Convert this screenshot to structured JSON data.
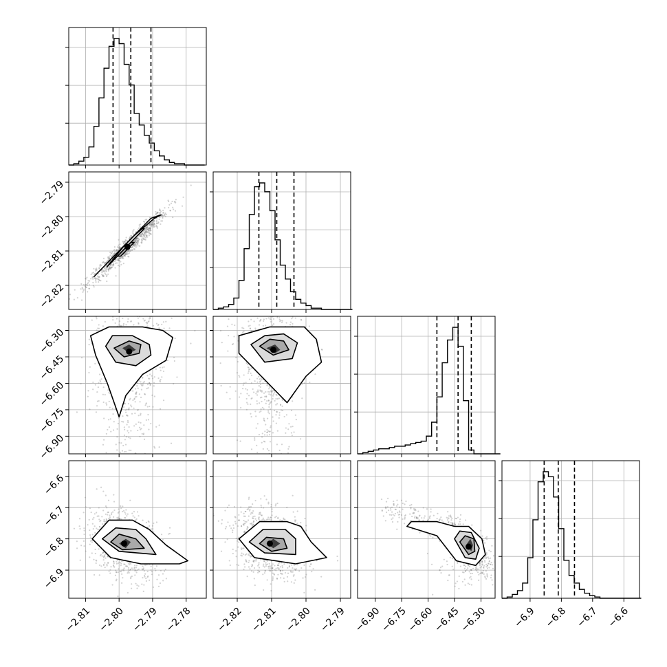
{
  "chart_data": {
    "type": "corner",
    "title": "",
    "grid": true,
    "colors": {
      "line": "#000000",
      "grid": "#b0b0b0",
      "points": "#7f7f7f"
    },
    "variables": [
      {
        "index": 0,
        "range": [
          -2.815,
          -2.774
        ],
        "ticks": [
          "-2.81",
          "-2.80",
          "-2.79",
          "-2.78"
        ],
        "quantiles": [
          -2.8018,
          -2.7965,
          -2.7905
        ],
        "hist": {
          "start": -2.815,
          "step": 0.0015,
          "counts": [
            0,
            1,
            3,
            6,
            14,
            30,
            52,
            75,
            92,
            98,
            94,
            78,
            62,
            40,
            31,
            23,
            17,
            11,
            7,
            4,
            2,
            1,
            1,
            0,
            0,
            0,
            0
          ]
        }
      },
      {
        "index": 1,
        "range": [
          -2.827,
          -2.787
        ],
        "ticks": [
          "-2.82",
          "-2.81",
          "-2.80",
          "-2.79"
        ],
        "quantiles": [
          -2.8137,
          -2.8085,
          -2.8035
        ],
        "hist": {
          "start": -2.827,
          "step": 0.0015,
          "counts": [
            0,
            1,
            2,
            4,
            9,
            23,
            48,
            75,
            97,
            100,
            93,
            78,
            55,
            35,
            24,
            14,
            8,
            5,
            3,
            1,
            1,
            0,
            0,
            0,
            0,
            0,
            0
          ]
        }
      },
      {
        "index": 2,
        "range": [
          -7.0,
          -6.22
        ],
        "ticks": [
          "-6.90",
          "-6.75",
          "-6.60",
          "-6.45",
          "-6.30"
        ],
        "quantiles": [
          -6.55,
          -6.43,
          -6.355
        ],
        "hist": {
          "start": -7.0,
          "step": 0.03,
          "counts": [
            0,
            1,
            2,
            3,
            4,
            4,
            5,
            6,
            6,
            7,
            8,
            9,
            10,
            14,
            25,
            45,
            72,
            90,
            100,
            85,
            42,
            3,
            0,
            0,
            0,
            0,
            0
          ]
        }
      },
      {
        "index": 3,
        "range": [
          -6.99,
          -6.55
        ],
        "ticks": [
          "-6.9",
          "-6.8",
          "-6.7",
          "-6.6"
        ],
        "quantiles": [
          -6.855,
          -6.81,
          -6.758
        ],
        "hist": {
          "start": -6.99,
          "step": 0.0165,
          "counts": [
            0,
            1,
            3,
            6,
            12,
            32,
            62,
            92,
            100,
            96,
            80,
            55,
            30,
            18,
            12,
            7,
            4,
            2,
            1,
            0,
            0,
            0,
            0,
            0,
            0,
            0,
            0
          ]
        }
      }
    ],
    "left_tick_labels": [
      {
        "row": 1,
        "ticks": [
          "-2.79",
          "-2.80",
          "-2.81",
          "-2.82"
        ]
      },
      {
        "row": 2,
        "ticks": [
          "-6.30",
          "-6.45",
          "-6.60",
          "-6.75",
          "-6.90"
        ]
      },
      {
        "row": 3,
        "ticks": [
          "-6.6",
          "-6.7",
          "-6.8",
          "-6.9"
        ]
      }
    ],
    "pairs": [
      {
        "row": 1,
        "col": 0,
        "center": [
          -2.7975,
          -2.8088
        ],
        "spread": [
          0.006,
          0.0055
        ],
        "corr": 0.97,
        "shape": "tight-correlated",
        "contours": [
          [
            [
              -2.8075,
              -2.8175
            ],
            [
              -2.8045,
              -2.8145
            ],
            [
              -2.7995,
              -2.8095
            ],
            [
              -2.7945,
              -2.8045
            ],
            [
              -2.7905,
              -2.8005
            ],
            [
              -2.7875,
              -2.7995
            ],
            [
              -2.7895,
              -2.8005
            ],
            [
              -2.7955,
              -2.8055
            ],
            [
              -2.8005,
              -2.8105
            ],
            [
              -2.8055,
              -2.8155
            ],
            [
              -2.8075,
              -2.8175
            ]
          ],
          [
            [
              -2.8035,
              -2.8145
            ],
            [
              -2.7985,
              -2.8085
            ],
            [
              -2.7935,
              -2.8035
            ],
            [
              -2.7925,
              -2.8035
            ],
            [
              -2.7975,
              -2.8085
            ],
            [
              -2.8025,
              -2.8135
            ],
            [
              -2.8035,
              -2.8145
            ]
          ],
          [
            [
              -2.8005,
              -2.8115
            ],
            [
              -2.7965,
              -2.8075
            ],
            [
              -2.7955,
              -2.8075
            ],
            [
              -2.7995,
              -2.8115
            ],
            [
              -2.8005,
              -2.8115
            ]
          ]
        ]
      },
      {
        "row": 2,
        "col": 0,
        "center": [
          -2.797,
          -6.42
        ],
        "spread": [
          0.0055,
          0.17
        ],
        "corr": 0.1,
        "shape": "skewed-tail",
        "contours": [
          [
            [
              -2.807,
              -6.44
            ],
            [
              -2.8035,
              -6.6
            ],
            [
              -2.8,
              -6.79
            ],
            [
              -2.798,
              -6.67
            ],
            [
              -2.793,
              -6.55
            ],
            [
              -2.786,
              -6.47
            ],
            [
              -2.784,
              -6.34
            ],
            [
              -2.787,
              -6.3
            ],
            [
              -2.793,
              -6.28
            ],
            [
              -2.803,
              -6.28
            ],
            [
              -2.8085,
              -6.33
            ],
            [
              -2.807,
              -6.44
            ]
          ],
          [
            [
              -2.804,
              -6.39
            ],
            [
              -2.801,
              -6.48
            ],
            [
              -2.795,
              -6.5
            ],
            [
              -2.7905,
              -6.44
            ],
            [
              -2.791,
              -6.38
            ],
            [
              -2.796,
              -6.33
            ],
            [
              -2.802,
              -6.33
            ],
            [
              -2.804,
              -6.39
            ]
          ],
          [
            [
              -2.8015,
              -6.4
            ],
            [
              -2.7985,
              -6.45
            ],
            [
              -2.794,
              -6.43
            ],
            [
              -2.7935,
              -6.38
            ],
            [
              -2.797,
              -6.36
            ],
            [
              -2.8015,
              -6.4
            ]
          ],
          [
            [
              -2.799,
              -6.4
            ],
            [
              -2.797,
              -6.43
            ],
            [
              -2.795,
              -6.41
            ],
            [
              -2.797,
              -6.38
            ],
            [
              -2.799,
              -6.4
            ]
          ]
        ]
      },
      {
        "row": 2,
        "col": 1,
        "center": [
          -2.8095,
          -6.41
        ],
        "spread": [
          0.0055,
          0.17
        ],
        "corr": 0.1,
        "shape": "skewed-tail",
        "contours": [
          [
            [
              -2.8195,
              -6.43
            ],
            [
              -2.812,
              -6.58
            ],
            [
              -2.8055,
              -6.71
            ],
            [
              -2.8,
              -6.56
            ],
            [
              -2.7955,
              -6.48
            ],
            [
              -2.797,
              -6.35
            ],
            [
              -2.8005,
              -6.28
            ],
            [
              -2.8105,
              -6.28
            ],
            [
              -2.8195,
              -6.33
            ],
            [
              -2.8195,
              -6.43
            ]
          ],
          [
            [
              -2.816,
              -6.38
            ],
            [
              -2.812,
              -6.48
            ],
            [
              -2.804,
              -6.46
            ],
            [
              -2.8025,
              -6.37
            ],
            [
              -2.8065,
              -6.32
            ],
            [
              -2.812,
              -6.33
            ],
            [
              -2.816,
              -6.38
            ]
          ],
          [
            [
              -2.8135,
              -6.39
            ],
            [
              -2.8095,
              -6.44
            ],
            [
              -2.805,
              -6.41
            ],
            [
              -2.8065,
              -6.36
            ],
            [
              -2.8105,
              -6.35
            ],
            [
              -2.8135,
              -6.39
            ]
          ],
          [
            [
              -2.8115,
              -6.4
            ],
            [
              -2.809,
              -6.43
            ],
            [
              -2.8075,
              -6.41
            ],
            [
              -2.809,
              -6.38
            ],
            [
              -2.8115,
              -6.4
            ]
          ]
        ]
      },
      {
        "row": 3,
        "col": 0,
        "center": [
          -2.7985,
          -6.815
        ],
        "spread": [
          0.0055,
          0.055
        ],
        "corr": -0.3,
        "shape": "blob",
        "contours": [
          [
            [
              -2.808,
              -6.8
            ],
            [
              -2.8025,
              -6.86
            ],
            [
              -2.7935,
              -6.88
            ],
            [
              -2.782,
              -6.88
            ],
            [
              -2.7795,
              -6.87
            ],
            [
              -2.786,
              -6.82
            ],
            [
              -2.791,
              -6.77
            ],
            [
              -2.796,
              -6.74
            ],
            [
              -2.803,
              -6.74
            ],
            [
              -2.808,
              -6.8
            ]
          ],
          [
            [
              -2.805,
              -6.8
            ],
            [
              -2.8,
              -6.84
            ],
            [
              -2.789,
              -6.85
            ],
            [
              -2.792,
              -6.8
            ],
            [
              -2.795,
              -6.77
            ],
            [
              -2.801,
              -6.765
            ],
            [
              -2.805,
              -6.8
            ]
          ],
          [
            [
              -2.8025,
              -6.81
            ],
            [
              -2.799,
              -6.835
            ],
            [
              -2.7925,
              -6.83
            ],
            [
              -2.795,
              -6.8
            ],
            [
              -2.8,
              -6.785
            ],
            [
              -2.8025,
              -6.81
            ]
          ],
          [
            [
              -2.8,
              -6.815
            ],
            [
              -2.798,
              -6.83
            ],
            [
              -2.7965,
              -6.81
            ],
            [
              -2.798,
              -6.8
            ],
            [
              -2.8,
              -6.815
            ]
          ]
        ]
      },
      {
        "row": 3,
        "col": 1,
        "center": [
          -2.8105,
          -6.815
        ],
        "spread": [
          0.0055,
          0.055
        ],
        "corr": -0.3,
        "shape": "blob",
        "contours": [
          [
            [
              -2.8195,
              -6.8
            ],
            [
              -2.815,
              -6.86
            ],
            [
              -2.803,
              -6.88
            ],
            [
              -2.794,
              -6.86
            ],
            [
              -2.7985,
              -6.81
            ],
            [
              -2.8015,
              -6.76
            ],
            [
              -2.8055,
              -6.745
            ],
            [
              -2.8135,
              -6.745
            ],
            [
              -2.8195,
              -6.8
            ]
          ],
          [
            [
              -2.8165,
              -6.81
            ],
            [
              -2.812,
              -6.845
            ],
            [
              -2.803,
              -6.85
            ],
            [
              -2.803,
              -6.8
            ],
            [
              -2.806,
              -6.77
            ],
            [
              -2.8125,
              -6.77
            ],
            [
              -2.8165,
              -6.81
            ]
          ],
          [
            [
              -2.8135,
              -6.815
            ],
            [
              -2.81,
              -6.84
            ],
            [
              -2.8055,
              -6.83
            ],
            [
              -2.8065,
              -6.8
            ],
            [
              -2.8115,
              -6.795
            ],
            [
              -2.8135,
              -6.815
            ]
          ],
          [
            [
              -2.8115,
              -6.815
            ],
            [
              -2.8095,
              -6.83
            ],
            [
              -2.8075,
              -6.815
            ],
            [
              -2.8095,
              -6.8
            ],
            [
              -2.8115,
              -6.815
            ]
          ]
        ]
      },
      {
        "row": 3,
        "col": 2,
        "center": [
          -6.37,
          -6.825
        ],
        "spread": [
          0.07,
          0.045
        ],
        "corr": -0.75,
        "shape": "banana",
        "contours": [
          [
            [
              -6.72,
              -6.76
            ],
            [
              -6.55,
              -6.79
            ],
            [
              -6.44,
              -6.87
            ],
            [
              -6.33,
              -6.885
            ],
            [
              -6.275,
              -6.85
            ],
            [
              -6.295,
              -6.8
            ],
            [
              -6.37,
              -6.76
            ],
            [
              -6.45,
              -6.76
            ],
            [
              -6.55,
              -6.745
            ],
            [
              -6.695,
              -6.745
            ],
            [
              -6.72,
              -6.76
            ]
          ],
          [
            [
              -6.45,
              -6.8
            ],
            [
              -6.39,
              -6.86
            ],
            [
              -6.33,
              -6.865
            ],
            [
              -6.31,
              -6.83
            ],
            [
              -6.355,
              -6.78
            ],
            [
              -6.42,
              -6.775
            ],
            [
              -6.45,
              -6.8
            ]
          ],
          [
            [
              -6.42,
              -6.81
            ],
            [
              -6.37,
              -6.85
            ],
            [
              -6.335,
              -6.84
            ],
            [
              -6.34,
              -6.8
            ],
            [
              -6.39,
              -6.79
            ],
            [
              -6.42,
              -6.81
            ]
          ],
          [
            [
              -6.385,
              -6.82
            ],
            [
              -6.355,
              -6.84
            ],
            [
              -6.345,
              -6.82
            ],
            [
              -6.36,
              -6.8
            ],
            [
              -6.385,
              -6.82
            ]
          ]
        ]
      }
    ]
  }
}
